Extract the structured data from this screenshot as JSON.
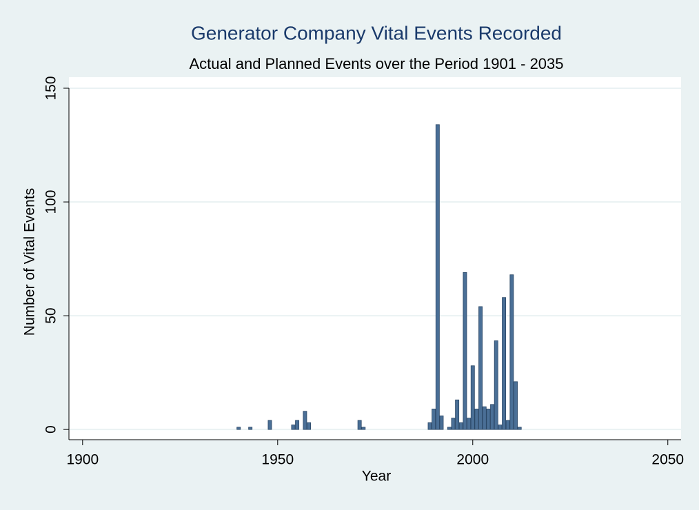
{
  "chart_data": {
    "type": "bar",
    "title": "Generator Company Vital Events Recorded",
    "subtitle": "Actual and Planned Events over the Period 1901 - 2035",
    "xlabel": "Year",
    "ylabel": "Number of Vital Events",
    "x": [
      1940,
      1943,
      1948,
      1954,
      1955,
      1957,
      1958,
      1971,
      1972,
      1989,
      1990,
      1991,
      1992,
      1994,
      1995,
      1996,
      1997,
      1998,
      1999,
      2000,
      2001,
      2002,
      2003,
      2004,
      2005,
      2006,
      2007,
      2008,
      2009,
      2010,
      2011,
      2012
    ],
    "values": [
      1,
      1,
      4,
      2,
      4,
      8,
      3,
      4,
      1,
      3,
      9,
      134,
      6,
      1,
      5,
      13,
      3,
      69,
      5,
      28,
      9,
      54,
      10,
      9,
      11,
      39,
      2,
      58,
      4,
      68,
      21,
      1
    ],
    "color": "#4a6f96",
    "xlim": [
      1896.5,
      2053.4
    ],
    "xticks": [
      1900,
      1950,
      2000,
      2050
    ],
    "ylim": [
      -4.5,
      150
    ],
    "yticks": [
      0,
      50,
      100,
      150
    ],
    "grid": true
  }
}
